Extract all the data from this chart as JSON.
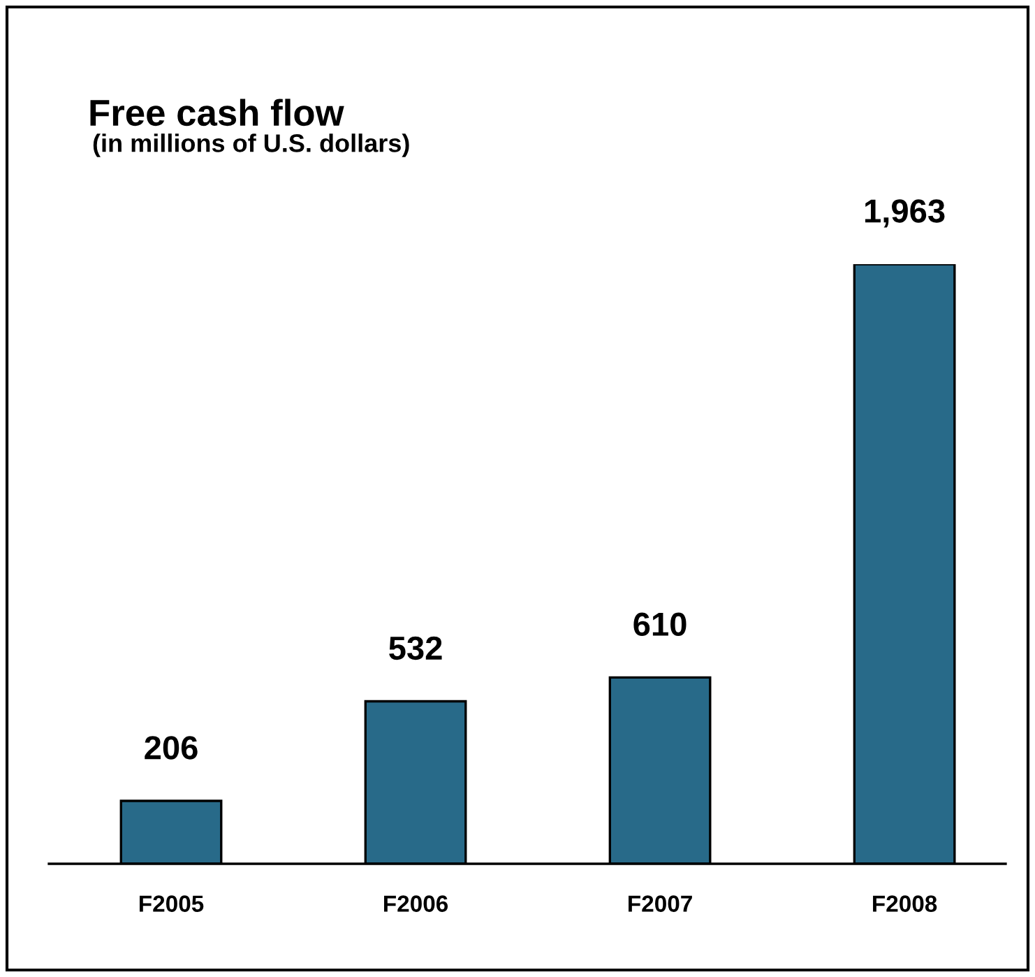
{
  "chart_data": {
    "type": "bar",
    "title": "Free cash flow",
    "subtitle": "(in millions of U.S. dollars)",
    "categories": [
      "F2005",
      "F2006",
      "F2007",
      "F2008"
    ],
    "values": [
      206,
      532,
      610,
      1963
    ],
    "color": "#286a89",
    "data_labels": true,
    "value_labels": [
      "206",
      "532",
      "610",
      "1,963"
    ],
    "grid": false,
    "legend": false,
    "tick_labels": "x"
  }
}
